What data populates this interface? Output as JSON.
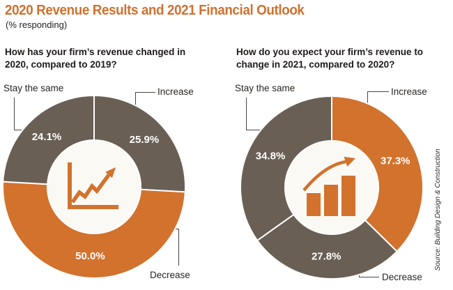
{
  "header": {
    "title": "2020 Revenue Results and 2021 Financial Outlook",
    "subtitle": "(% responding)"
  },
  "source": {
    "text": "Source: Building Design & Construction"
  },
  "colors": {
    "orange": "#d2722d",
    "brown": "#6a5f55",
    "title": "#d2702e",
    "connector": "#4a443e",
    "text_dark": "#1d1a18",
    "value_text": "#ffffff",
    "center_fill": "#fbf9f4"
  },
  "chart_data": [
    {
      "type": "pie",
      "style": "donut",
      "question": "How has your firm’s revenue changed in 2020, compared to 2019?",
      "question_lines": [
        "How has your firm’s revenue changed in",
        "2020, compared to 2019?"
      ],
      "center_icon": "line-chart-up",
      "start_angle_deg": 0,
      "direction": "clockwise",
      "legend_position": "callouts",
      "segments": [
        {
          "label": "Increase",
          "value": 25.9,
          "display": "25.9%",
          "color": "#6a5f55"
        },
        {
          "label": "Decrease",
          "value": 50.0,
          "display": "50.0%",
          "color": "#d2722d"
        },
        {
          "label": "Stay the same",
          "value": 24.1,
          "display": "24.1%",
          "color": "#6a5f55"
        }
      ]
    },
    {
      "type": "pie",
      "style": "donut",
      "question": "How do you expect your firm’s revenue to change in 2021, compared to 2020?",
      "question_lines": [
        "How do you expect your firm’s revenue to",
        "change in 2021, compared to 2020?"
      ],
      "center_icon": "bar-chart-up",
      "start_angle_deg": 0,
      "direction": "clockwise",
      "legend_position": "callouts",
      "segments": [
        {
          "label": "Increase",
          "value": 37.3,
          "display": "37.3%",
          "color": "#d2722d"
        },
        {
          "label": "Decrease",
          "value": 27.8,
          "display": "27.8%",
          "color": "#6a5f55"
        },
        {
          "label": "Stay the same",
          "value": 34.8,
          "display": "34.8%",
          "color": "#6a5f55"
        }
      ]
    }
  ]
}
